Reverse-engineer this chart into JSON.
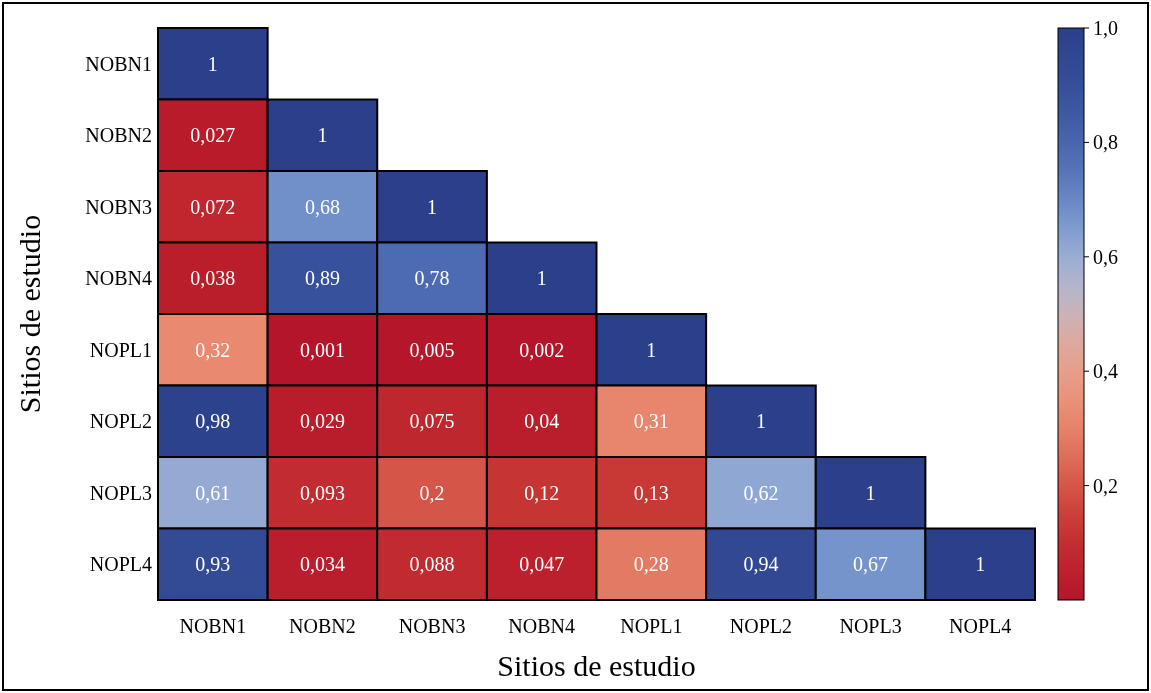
{
  "chart_data": {
    "type": "heatmap",
    "xlabel": "Sitios de estudio",
    "ylabel": "Sitios de estudio",
    "categories": [
      "NOBN1",
      "NOBN2",
      "NOBN3",
      "NOBN4",
      "NOPL1",
      "NOPL2",
      "NOPL3",
      "NOPL4"
    ],
    "y_categories": [
      "NOBN1",
      "NOBN2",
      "NOBN3",
      "NOBN4",
      "NOPL1",
      "NOPL2",
      "NOPL3",
      "NOPL4"
    ],
    "cells": [
      [
        1,
        null,
        null,
        null,
        null,
        null,
        null,
        null
      ],
      [
        0.027,
        1,
        null,
        null,
        null,
        null,
        null,
        null
      ],
      [
        0.072,
        0.68,
        1,
        null,
        null,
        null,
        null,
        null
      ],
      [
        0.038,
        0.89,
        0.78,
        1,
        null,
        null,
        null,
        null
      ],
      [
        0.32,
        0.001,
        0.005,
        0.002,
        1,
        null,
        null,
        null
      ],
      [
        0.98,
        0.029,
        0.075,
        0.04,
        0.31,
        1,
        null,
        null
      ],
      [
        0.61,
        0.093,
        0.2,
        0.12,
        0.13,
        0.62,
        1,
        null
      ],
      [
        0.93,
        0.034,
        0.088,
        0.047,
        0.28,
        0.94,
        0.67,
        1
      ]
    ],
    "cell_labels": [
      [
        "1",
        null,
        null,
        null,
        null,
        null,
        null,
        null
      ],
      [
        "0,027",
        "1",
        null,
        null,
        null,
        null,
        null,
        null
      ],
      [
        "0,072",
        "0,68",
        "1",
        null,
        null,
        null,
        null,
        null
      ],
      [
        "0,038",
        "0,89",
        "0,78",
        "1",
        null,
        null,
        null,
        null
      ],
      [
        "0,32",
        "0,001",
        "0,005",
        "0,002",
        "1",
        null,
        null,
        null
      ],
      [
        "0,98",
        "0,029",
        "0,075",
        "0,04",
        "0,31",
        "1",
        null,
        null
      ],
      [
        "0,61",
        "0,093",
        "0,2",
        "0,12",
        "0,13",
        "0,62",
        "1",
        null
      ],
      [
        "0,93",
        "0,034",
        "0,088",
        "0,047",
        "0,28",
        "0,94",
        "0,67",
        "1"
      ]
    ],
    "clim": [
      0,
      1
    ],
    "cticks": [
      {
        "value": 0.2,
        "label": "0,2"
      },
      {
        "value": 0.4,
        "label": "0,4"
      },
      {
        "value": 0.6,
        "label": "0,6"
      },
      {
        "value": 0.8,
        "label": "0,8"
      },
      {
        "value": 1,
        "label": "1,0"
      }
    ]
  }
}
